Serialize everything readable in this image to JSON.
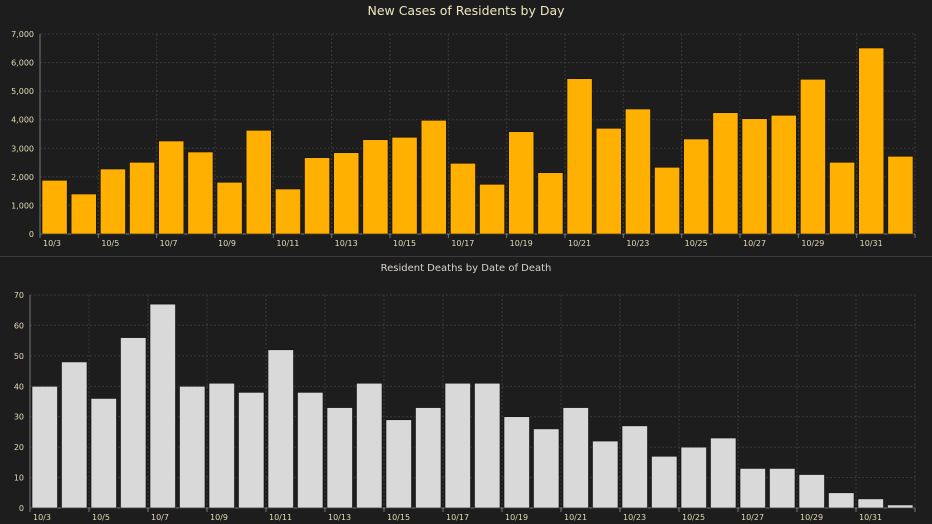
{
  "chart_data": [
    {
      "type": "bar",
      "title": "New Cases of Residents by Day",
      "xlabel": "",
      "ylabel": "",
      "ylim": [
        0,
        7000
      ],
      "yticks": [
        "0",
        "1,000",
        "2,000",
        "3,000",
        "4,000",
        "5,000",
        "6,000",
        "7,000"
      ],
      "ytick_values": [
        0,
        1000,
        2000,
        3000,
        4000,
        5000,
        6000,
        7000
      ],
      "grid": true,
      "bar_color": "#ffb000",
      "categories": [
        "10/3",
        "10/4",
        "10/5",
        "10/6",
        "10/7",
        "10/8",
        "10/9",
        "10/10",
        "10/11",
        "10/12",
        "10/13",
        "10/14",
        "10/15",
        "10/16",
        "10/17",
        "10/18",
        "10/19",
        "10/20",
        "10/21",
        "10/22",
        "10/23",
        "10/24",
        "10/25",
        "10/26",
        "10/27",
        "10/28",
        "10/29",
        "10/30",
        "10/31",
        "11/1"
      ],
      "xtick_labels": [
        "10/3",
        "10/5",
        "10/7",
        "10/9",
        "10/11",
        "10/13",
        "10/15",
        "10/17",
        "10/19",
        "10/21",
        "10/23",
        "10/25",
        "10/27",
        "10/29",
        "10/31"
      ],
      "values": [
        1880,
        1400,
        2275,
        2510,
        3255,
        2870,
        1810,
        3630,
        1575,
        2670,
        2845,
        3300,
        3385,
        3980,
        2475,
        1740,
        3580,
        2145,
        5435,
        3700,
        4375,
        2335,
        3325,
        4245,
        4035,
        4155,
        5415,
        2510,
        6510,
        2720
      ]
    },
    {
      "type": "bar",
      "title": "Resident Deaths by Date of Death",
      "xlabel": "",
      "ylabel": "",
      "ylim": [
        0,
        70
      ],
      "yticks": [
        "0",
        "10",
        "20",
        "30",
        "40",
        "50",
        "60",
        "70"
      ],
      "ytick_values": [
        0,
        10,
        20,
        30,
        40,
        50,
        60,
        70
      ],
      "grid": true,
      "bar_color": "#d9d9d9",
      "categories": [
        "10/3",
        "10/4",
        "10/5",
        "10/6",
        "10/7",
        "10/8",
        "10/9",
        "10/10",
        "10/11",
        "10/12",
        "10/13",
        "10/14",
        "10/15",
        "10/16",
        "10/17",
        "10/18",
        "10/19",
        "10/20",
        "10/21",
        "10/22",
        "10/23",
        "10/24",
        "10/25",
        "10/26",
        "10/27",
        "10/28",
        "10/29",
        "10/30",
        "10/31",
        "11/1"
      ],
      "xtick_labels": [
        "10/3",
        "10/5",
        "10/7",
        "10/9",
        "10/11",
        "10/13",
        "10/15",
        "10/17",
        "10/19",
        "10/21",
        "10/23",
        "10/25",
        "10/27",
        "10/29",
        "10/31"
      ],
      "values": [
        40,
        48,
        36,
        56,
        67,
        40,
        41,
        38,
        52,
        38,
        33,
        41,
        29,
        33,
        41,
        41,
        30,
        26,
        33,
        22,
        27,
        17,
        20,
        23,
        13,
        13,
        11,
        5,
        3,
        1
      ]
    }
  ]
}
